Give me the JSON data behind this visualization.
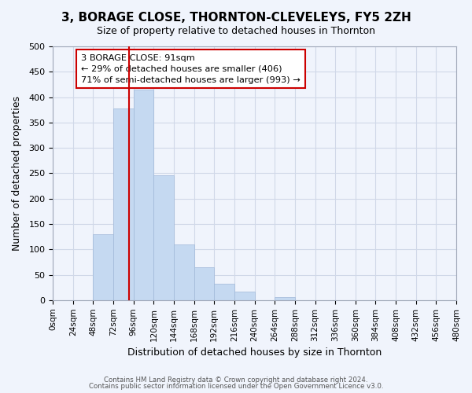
{
  "title": "3, BORAGE CLOSE, THORNTON-CLEVELEYS, FY5 2ZH",
  "subtitle": "Size of property relative to detached houses in Thornton",
  "xlabel": "Distribution of detached houses by size in Thornton",
  "ylabel": "Number of detached properties",
  "bin_edges": [
    0,
    24,
    48,
    72,
    96,
    120,
    144,
    168,
    192,
    216,
    240,
    264,
    288,
    312,
    336,
    360,
    384,
    408,
    432,
    456,
    480
  ],
  "bar_heights": [
    0,
    0,
    130,
    378,
    415,
    246,
    110,
    65,
    33,
    17,
    0,
    6,
    0,
    0,
    0,
    0,
    0,
    0,
    0,
    0
  ],
  "bar_color": "#c5d9f1",
  "bar_edgecolor": "#a0b8d8",
  "vline_x": 91,
  "vline_color": "#cc0000",
  "ylim": [
    0,
    500
  ],
  "yticks": [
    0,
    50,
    100,
    150,
    200,
    250,
    300,
    350,
    400,
    450,
    500
  ],
  "xtick_labels": [
    "0sqm",
    "24sqm",
    "48sqm",
    "72sqm",
    "96sqm",
    "120sqm",
    "144sqm",
    "168sqm",
    "192sqm",
    "216sqm",
    "240sqm",
    "264sqm",
    "288sqm",
    "312sqm",
    "336sqm",
    "360sqm",
    "384sqm",
    "408sqm",
    "432sqm",
    "456sqm",
    "480sqm"
  ],
  "annotation_title": "3 BORAGE CLOSE: 91sqm",
  "annotation_line1": "← 29% of detached houses are smaller (406)",
  "annotation_line2": "71% of semi-detached houses are larger (993) →",
  "annotation_box_color": "#ffffff",
  "annotation_box_edgecolor": "#cc0000",
  "footer1": "Contains HM Land Registry data © Crown copyright and database right 2024.",
  "footer2": "Contains public sector information licensed under the Open Government Licence v3.0.",
  "grid_color": "#d0d8e8",
  "background_color": "#f0f4fc"
}
